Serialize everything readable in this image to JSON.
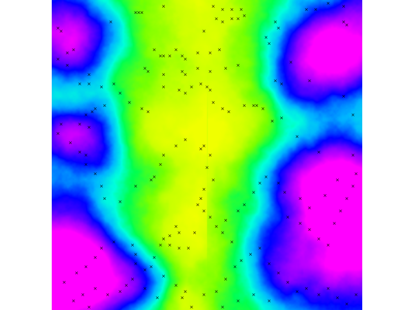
{
  "map": {
    "type": "elevation-heatmap",
    "colormap": [
      "#ff00ff",
      "#0000ff",
      "#00ffff",
      "#00ff00",
      "#ccff00",
      "#ffff00"
    ],
    "colormap_order": "low elevation (magenta) to high elevation (yellow) along valley floor",
    "marker_symbol": "×",
    "marker_color": "#000000",
    "grid": false,
    "axes_visible": false,
    "legend_visible": false
  },
  "chart_data": {
    "type": "heatmap",
    "title": "",
    "xlabel": "",
    "ylabel": "",
    "xlim": [
      0,
      1
    ],
    "ylim": [
      0,
      1
    ],
    "colorscale": [
      "#ff00ff",
      "#0000ff",
      "#00ffff",
      "#00ff00",
      "#ccff00",
      "#ffff00"
    ],
    "markers": {
      "symbol": "×",
      "points": [
        [
          0.27,
          0.04
        ],
        [
          0.28,
          0.04
        ],
        [
          0.29,
          0.04
        ],
        [
          0.36,
          0.02
        ],
        [
          0.52,
          0.02
        ],
        [
          0.55,
          0.03
        ],
        [
          0.58,
          0.03
        ],
        [
          0.61,
          0.03
        ],
        [
          0.82,
          0.03
        ],
        [
          0.85,
          0.03
        ],
        [
          0.89,
          0.01
        ],
        [
          0.94,
          0.02
        ],
        [
          0.19,
          0.07
        ],
        [
          0.02,
          0.09
        ],
        [
          0.03,
          0.1
        ],
        [
          0.49,
          0.1
        ],
        [
          0.53,
          0.06
        ],
        [
          0.55,
          0.07
        ],
        [
          0.58,
          0.06
        ],
        [
          0.6,
          0.06
        ],
        [
          0.62,
          0.05
        ],
        [
          0.72,
          0.07
        ],
        [
          0.73,
          0.09
        ],
        [
          0.94,
          0.07
        ],
        [
          0.95,
          0.08
        ],
        [
          0.07,
          0.16
        ],
        [
          0.05,
          0.17
        ],
        [
          0.02,
          0.19
        ],
        [
          0.33,
          0.16
        ],
        [
          0.35,
          0.18
        ],
        [
          0.36,
          0.18
        ],
        [
          0.38,
          0.18
        ],
        [
          0.4,
          0.16
        ],
        [
          0.42,
          0.18
        ],
        [
          0.43,
          0.19
        ],
        [
          0.47,
          0.17
        ],
        [
          0.51,
          0.17
        ],
        [
          0.54,
          0.16
        ],
        [
          0.56,
          0.22
        ],
        [
          0.6,
          0.21
        ],
        [
          0.69,
          0.12
        ],
        [
          0.7,
          0.14
        ],
        [
          0.77,
          0.2
        ],
        [
          0.3,
          0.22
        ],
        [
          0.31,
          0.23
        ],
        [
          0.36,
          0.24
        ],
        [
          0.42,
          0.23
        ],
        [
          0.43,
          0.24
        ],
        [
          0.47,
          0.22
        ],
        [
          0.51,
          0.23
        ],
        [
          0.05,
          0.21
        ],
        [
          0.12,
          0.24
        ],
        [
          0.12,
          0.27
        ],
        [
          0.09,
          0.27
        ],
        [
          0.16,
          0.28
        ],
        [
          0.2,
          0.27
        ],
        [
          0.22,
          0.3
        ],
        [
          0.25,
          0.33
        ],
        [
          0.29,
          0.35
        ],
        [
          0.31,
          0.36
        ],
        [
          0.36,
          0.28
        ],
        [
          0.41,
          0.29
        ],
        [
          0.43,
          0.3
        ],
        [
          0.45,
          0.28
        ],
        [
          0.48,
          0.27
        ],
        [
          0.5,
          0.28
        ],
        [
          0.51,
          0.29
        ],
        [
          0.52,
          0.33
        ],
        [
          0.55,
          0.35
        ],
        [
          0.57,
          0.36
        ],
        [
          0.62,
          0.34
        ],
        [
          0.65,
          0.34
        ],
        [
          0.66,
          0.34
        ],
        [
          0.68,
          0.35
        ],
        [
          0.72,
          0.26
        ],
        [
          0.74,
          0.27
        ],
        [
          0.83,
          0.26
        ],
        [
          0.94,
          0.31
        ],
        [
          0.97,
          0.37
        ],
        [
          0.71,
          0.39
        ],
        [
          0.74,
          0.38
        ],
        [
          0.79,
          0.44
        ],
        [
          0.86,
          0.49
        ],
        [
          0.97,
          0.5
        ],
        [
          0.17,
          0.34
        ],
        [
          0.14,
          0.35
        ],
        [
          0.13,
          0.36
        ],
        [
          0.11,
          0.37
        ],
        [
          0.09,
          0.4
        ],
        [
          0.12,
          0.41
        ],
        [
          0.03,
          0.4
        ],
        [
          0.02,
          0.43
        ],
        [
          0.06,
          0.46
        ],
        [
          0.09,
          0.49
        ],
        [
          0.11,
          0.5
        ],
        [
          0.11,
          0.53
        ],
        [
          0.14,
          0.56
        ],
        [
          0.16,
          0.6
        ],
        [
          0.17,
          0.64
        ],
        [
          0.22,
          0.65
        ],
        [
          0.27,
          0.6
        ],
        [
          0.32,
          0.58
        ],
        [
          0.33,
          0.57
        ],
        [
          0.35,
          0.53
        ],
        [
          0.36,
          0.5
        ],
        [
          0.4,
          0.47
        ],
        [
          0.43,
          0.45
        ],
        [
          0.48,
          0.48
        ],
        [
          0.49,
          0.47
        ],
        [
          0.51,
          0.5
        ],
        [
          0.5,
          0.54
        ],
        [
          0.52,
          0.58
        ],
        [
          0.49,
          0.61
        ],
        [
          0.48,
          0.64
        ],
        [
          0.47,
          0.66
        ],
        [
          0.49,
          0.68
        ],
        [
          0.51,
          0.7
        ],
        [
          0.53,
          0.73
        ],
        [
          0.55,
          0.75
        ],
        [
          0.58,
          0.78
        ],
        [
          0.56,
          0.71
        ],
        [
          0.6,
          0.68
        ],
        [
          0.62,
          0.66
        ],
        [
          0.65,
          0.62
        ],
        [
          0.67,
          0.59
        ],
        [
          0.69,
          0.57
        ],
        [
          0.73,
          0.59
        ],
        [
          0.75,
          0.62
        ],
        [
          0.76,
          0.7
        ],
        [
          0.8,
          0.72
        ],
        [
          0.83,
          0.74
        ],
        [
          0.86,
          0.77
        ],
        [
          0.89,
          0.79
        ],
        [
          0.91,
          0.72
        ],
        [
          0.93,
          0.68
        ],
        [
          0.95,
          0.64
        ],
        [
          0.97,
          0.6
        ],
        [
          0.98,
          0.56
        ],
        [
          0.92,
          0.58
        ],
        [
          0.88,
          0.63
        ],
        [
          0.83,
          0.67
        ],
        [
          0.8,
          0.64
        ],
        [
          0.4,
          0.73
        ],
        [
          0.41,
          0.75
        ],
        [
          0.38,
          0.76
        ],
        [
          0.36,
          0.77
        ],
        [
          0.41,
          0.8
        ],
        [
          0.44,
          0.8
        ],
        [
          0.46,
          0.75
        ],
        [
          0.38,
          0.79
        ],
        [
          0.35,
          0.79
        ],
        [
          0.33,
          0.83
        ],
        [
          0.3,
          0.87
        ],
        [
          0.27,
          0.85
        ],
        [
          0.26,
          0.9
        ],
        [
          0.24,
          0.92
        ],
        [
          0.22,
          0.94
        ],
        [
          0.18,
          0.95
        ],
        [
          0.14,
          0.93
        ],
        [
          0.1,
          0.95
        ],
        [
          0.07,
          0.97
        ],
        [
          0.12,
          0.99
        ],
        [
          0.04,
          0.91
        ],
        [
          0.08,
          0.88
        ],
        [
          0.11,
          0.86
        ],
        [
          0.14,
          0.83
        ],
        [
          0.16,
          0.8
        ],
        [
          0.2,
          0.78
        ],
        [
          0.26,
          0.79
        ],
        [
          0.27,
          0.82
        ],
        [
          0.32,
          0.86
        ],
        [
          0.36,
          0.89
        ],
        [
          0.4,
          0.92
        ],
        [
          0.43,
          0.94
        ],
        [
          0.49,
          0.95
        ],
        [
          0.53,
          0.94
        ],
        [
          0.56,
          0.9
        ],
        [
          0.59,
          0.86
        ],
        [
          0.61,
          0.84
        ],
        [
          0.64,
          0.82
        ],
        [
          0.67,
          0.8
        ],
        [
          0.7,
          0.85
        ],
        [
          0.73,
          0.88
        ],
        [
          0.76,
          0.91
        ],
        [
          0.79,
          0.94
        ],
        [
          0.82,
          0.93
        ],
        [
          0.86,
          0.95
        ],
        [
          0.89,
          0.93
        ],
        [
          0.92,
          0.96
        ],
        [
          0.95,
          0.98
        ],
        [
          0.98,
          0.95
        ],
        [
          0.7,
          0.97
        ],
        [
          0.65,
          0.95
        ],
        [
          0.6,
          0.97
        ],
        [
          0.55,
          0.99
        ],
        [
          0.45,
          0.99
        ],
        [
          0.42,
          0.96
        ],
        [
          0.34,
          0.96
        ],
        [
          0.3,
          0.93
        ]
      ]
    }
  }
}
